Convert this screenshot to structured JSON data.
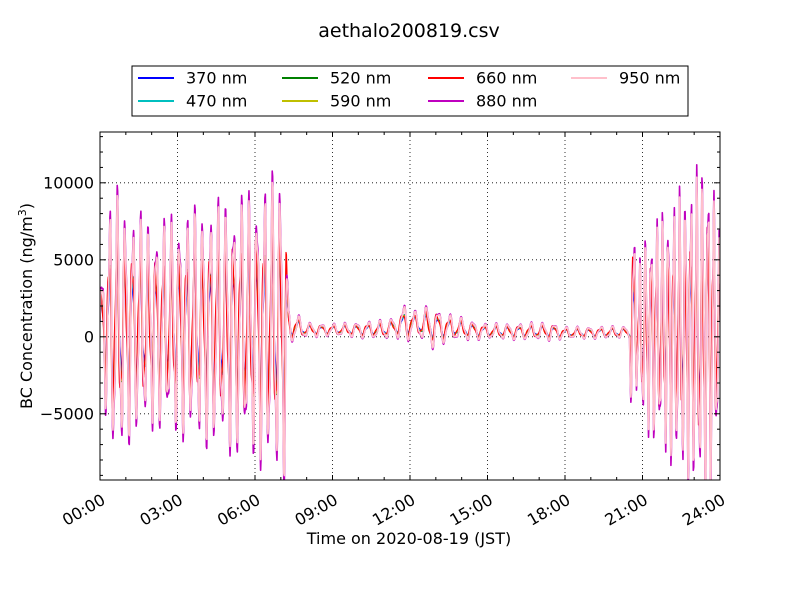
{
  "chart_data": {
    "type": "line",
    "title": "aethalo200819.csv",
    "xlabel": "Time on 2020-08-19 (JST)",
    "ylabel": "BC Concentration (ng/m",
    "ylabel_sup": "3",
    "ylabel_tail": ")",
    "xlim_hours": [
      0,
      24
    ],
    "ylim": [
      -9300,
      13300
    ],
    "x_ticks": [
      "00:00",
      "03:00",
      "06:00",
      "09:00",
      "12:00",
      "15:00",
      "18:00",
      "21:00",
      "24:00"
    ],
    "x_tick_hours": [
      0,
      3,
      6,
      9,
      12,
      15,
      18,
      21,
      24
    ],
    "y_ticks": [
      "−5000",
      "0",
      "5000",
      "10000"
    ],
    "y_tick_values": [
      -5000,
      0,
      5000,
      10000
    ],
    "grid": true,
    "legend_position": "top, above plot",
    "series": [
      {
        "name": "370 nm",
        "color": "#0000ff",
        "gain": 0.55,
        "phase": 0.0
      },
      {
        "name": "470 nm",
        "color": "#00bfbf",
        "gain": 0.6,
        "phase": 0.15
      },
      {
        "name": "520 nm",
        "color": "#008000",
        "gain": 0.65,
        "phase": 0.3
      },
      {
        "name": "590 nm",
        "color": "#bfbf00",
        "gain": 0.7,
        "phase": 0.45
      },
      {
        "name": "660 nm",
        "color": "#ff0000",
        "gain": 0.75,
        "phase": 0.6
      },
      {
        "name": "880 nm",
        "color": "#bf00bf",
        "gain": 1.08,
        "phase": 0.0
      },
      {
        "name": "950 nm",
        "color": "#ffc0cb",
        "gain": 1.0,
        "phase": 0.0
      }
    ],
    "profile": [
      [
        0.0,
        2500
      ],
      [
        0.25,
        6000
      ],
      [
        0.5,
        9000
      ],
      [
        1.0,
        7500
      ],
      [
        2.0,
        6500
      ],
      [
        3.0,
        7000
      ],
      [
        4.0,
        7500
      ],
      [
        5.0,
        8000
      ],
      [
        6.0,
        8500
      ],
      [
        6.7,
        9500
      ],
      [
        7.2,
        10000
      ],
      [
        7.3,
        1200
      ],
      [
        8.0,
        500
      ],
      [
        9.0,
        400
      ],
      [
        11.5,
        700
      ],
      [
        11.8,
        1500
      ],
      [
        12.2,
        800
      ],
      [
        12.8,
        1500
      ],
      [
        13.5,
        900
      ],
      [
        15.0,
        500
      ],
      [
        17.5,
        600
      ],
      [
        18.0,
        400
      ],
      [
        20.5,
        400
      ],
      [
        20.6,
        10000
      ],
      [
        20.8,
        3000
      ],
      [
        21.0,
        6000
      ],
      [
        22.0,
        8000
      ],
      [
        23.0,
        10000
      ],
      [
        23.6,
        11000
      ],
      [
        24.0,
        6000
      ]
    ],
    "baseline": [
      [
        0.0,
        800
      ],
      [
        7.3,
        700
      ],
      [
        8.0,
        450
      ],
      [
        11.0,
        450
      ],
      [
        12.0,
        900
      ],
      [
        13.0,
        650
      ],
      [
        15.0,
        350
      ],
      [
        17.5,
        350
      ],
      [
        18.0,
        250
      ],
      [
        20.5,
        300
      ],
      [
        21.0,
        300
      ],
      [
        24.0,
        300
      ]
    ],
    "wiggle_period_hours": [
      [
        0.0,
        0.3
      ],
      [
        7.3,
        0.3
      ],
      [
        7.4,
        0.45
      ],
      [
        20.5,
        0.45
      ],
      [
        20.7,
        0.22
      ],
      [
        24.0,
        0.22
      ]
    ]
  }
}
